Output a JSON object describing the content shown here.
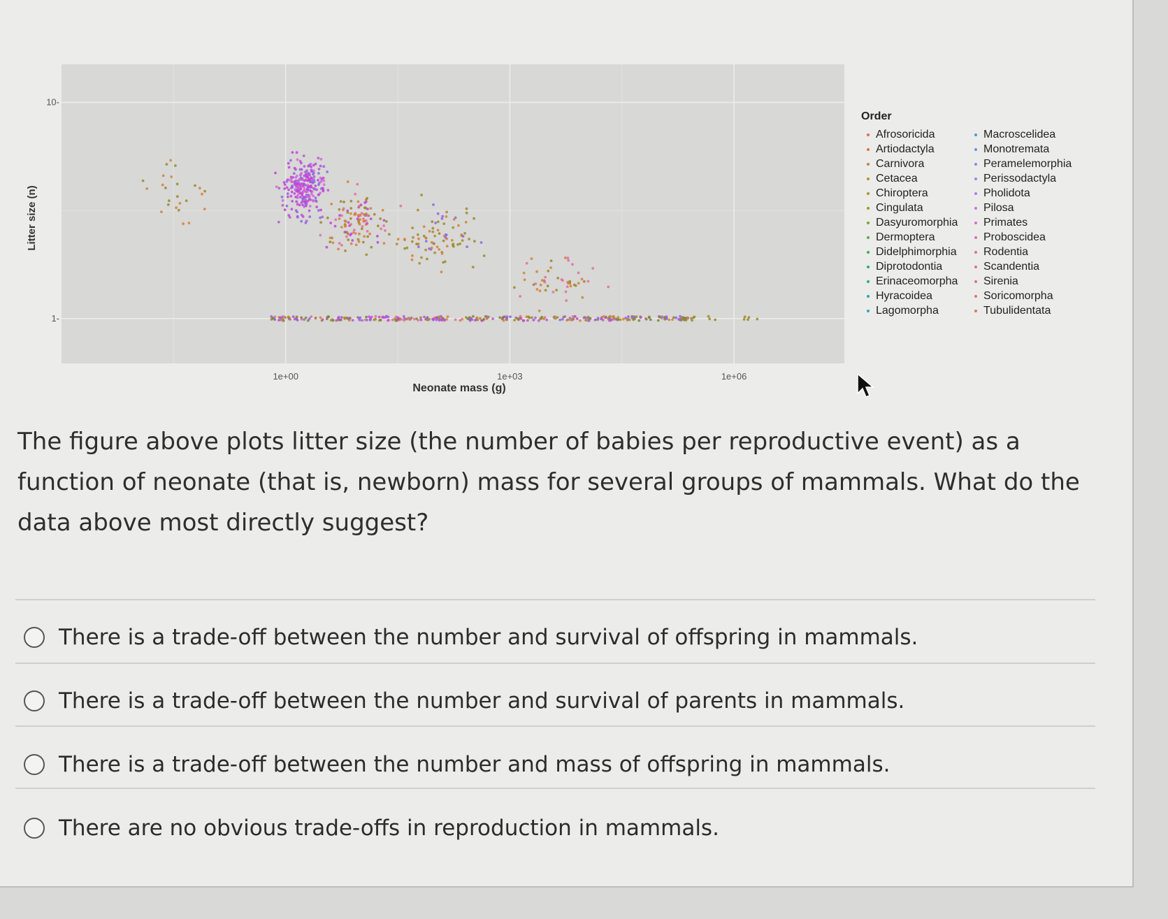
{
  "chart_data": {
    "type": "scatter",
    "title": "",
    "xlabel": "Neonate mass (g)",
    "ylabel": "Litter size (n)",
    "x_scale": "log10",
    "y_scale": "log10",
    "xlim": [
      0.001,
      30000000
    ],
    "ylim": [
      0.62,
      15
    ],
    "x_ticks": [
      {
        "value": 1,
        "label": "1e+00"
      },
      {
        "value": 1000,
        "label": "1e+03"
      },
      {
        "value": 1000000,
        "label": "1e+06"
      }
    ],
    "y_ticks": [
      {
        "value": 1,
        "label": "1-"
      },
      {
        "value": 10,
        "label": "10-"
      }
    ],
    "grid": true,
    "legend": {
      "title": "Order",
      "placement": "right",
      "entries": [
        {
          "name": "Afrosoricida",
          "color": "#e06a5a"
        },
        {
          "name": "Artiodactyla",
          "color": "#d8743f"
        },
        {
          "name": "Carnivora",
          "color": "#c9813a"
        },
        {
          "name": "Cetacea",
          "color": "#b98d2f"
        },
        {
          "name": "Chiroptera",
          "color": "#a8962c"
        },
        {
          "name": "Cingulata",
          "color": "#939d2c"
        },
        {
          "name": "Dasyuromorphia",
          "color": "#7ba334"
        },
        {
          "name": "Dermoptera",
          "color": "#5ea844"
        },
        {
          "name": "Didelphimorphia",
          "color": "#3dab5a"
        },
        {
          "name": "Diprotodontia",
          "color": "#2aad77"
        },
        {
          "name": "Erinaceomorpha",
          "color": "#24ad93"
        },
        {
          "name": "Hyracoidea",
          "color": "#26aaaf"
        },
        {
          "name": "Lagomorpha",
          "color": "#2ea5c7"
        },
        {
          "name": "Macroscelidea",
          "color": "#3c9fdb"
        },
        {
          "name": "Monotremata",
          "color": "#5a97e8"
        },
        {
          "name": "Peramelemorphia",
          "color": "#7c8eee"
        },
        {
          "name": "Perissodactyla",
          "color": "#9a85ee"
        },
        {
          "name": "Pholidota",
          "color": "#b37ce9"
        },
        {
          "name": "Pilosa",
          "color": "#c774df"
        },
        {
          "name": "Primates",
          "color": "#d66ed0"
        },
        {
          "name": "Proboscidea",
          "color": "#e06abd"
        },
        {
          "name": "Rodentia",
          "color": "#e46ba7"
        },
        {
          "name": "Scandentia",
          "color": "#e46d91"
        },
        {
          "name": "Sirenia",
          "color": "#e3707d"
        },
        {
          "name": "Soricomorpha",
          "color": "#e07468"
        },
        {
          "name": "Tubulidentata",
          "color": "#d97a58"
        }
      ]
    },
    "series_note_colors": {
      "purple_cluster": "#c244d6",
      "olive": "#9a8a2a",
      "orange": "#d7803a",
      "violet": "#8a6ae0"
    }
  },
  "question": {
    "text": "The figure above plots litter size (the number of babies per reproductive event) as a function of neonate (that is, newborn) mass for several groups of mammals. What do the data above most directly suggest?"
  },
  "options": [
    {
      "label": "There is a trade-off between the number and survival of offspring in mammals.",
      "selected": false
    },
    {
      "label": "There is a trade-off between the number and survival of parents in mammals.",
      "selected": false
    },
    {
      "label": "There is a trade-off between the number and mass of offspring in mammals.",
      "selected": false
    },
    {
      "label": "There are no obvious trade-offs in reproduction in mammals.",
      "selected": false
    }
  ],
  "colors": {
    "panel": "#d8d8d6",
    "grid": "#ececea",
    "text": "#2e2e2e"
  }
}
